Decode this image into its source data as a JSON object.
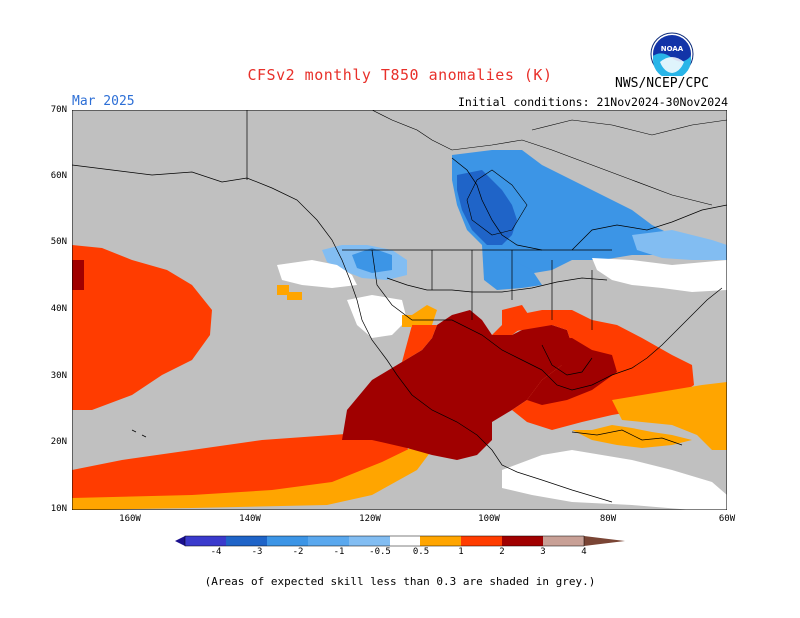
{
  "header": {
    "title": "CFSv2 monthly T850 anomalies (K)",
    "month": "Mar 2025",
    "initial_conditions": "Initial conditions: 21Nov2024-30Nov2024",
    "agency": "NWS/NCEP/CPC",
    "logo_text": "NOAA"
  },
  "map": {
    "latitude_labels": [
      "70N",
      "60N",
      "50N",
      "40N",
      "30N",
      "20N",
      "10N"
    ],
    "longitude_labels": [
      "160W",
      "140W",
      "120W",
      "100W",
      "80W",
      "60W"
    ],
    "background_color": "#c0c0c0",
    "region": "North America and eastern Pacific"
  },
  "legend": {
    "labels": [
      "-4",
      "-3",
      "-2",
      "-1",
      "-0.5",
      "0.5",
      "1",
      "2",
      "3",
      "4"
    ],
    "colors": [
      "#1a0f8e",
      "#3a3acc",
      "#1f64c8",
      "#3c95e6",
      "#82bdf2",
      "#ffffff",
      "#ffa500",
      "#ff3c00",
      "#a00000",
      "#c8a096",
      "#7a4535"
    ]
  },
  "footnote": "(Areas of expected skill less than 0.3 are shaded in grey.)"
}
